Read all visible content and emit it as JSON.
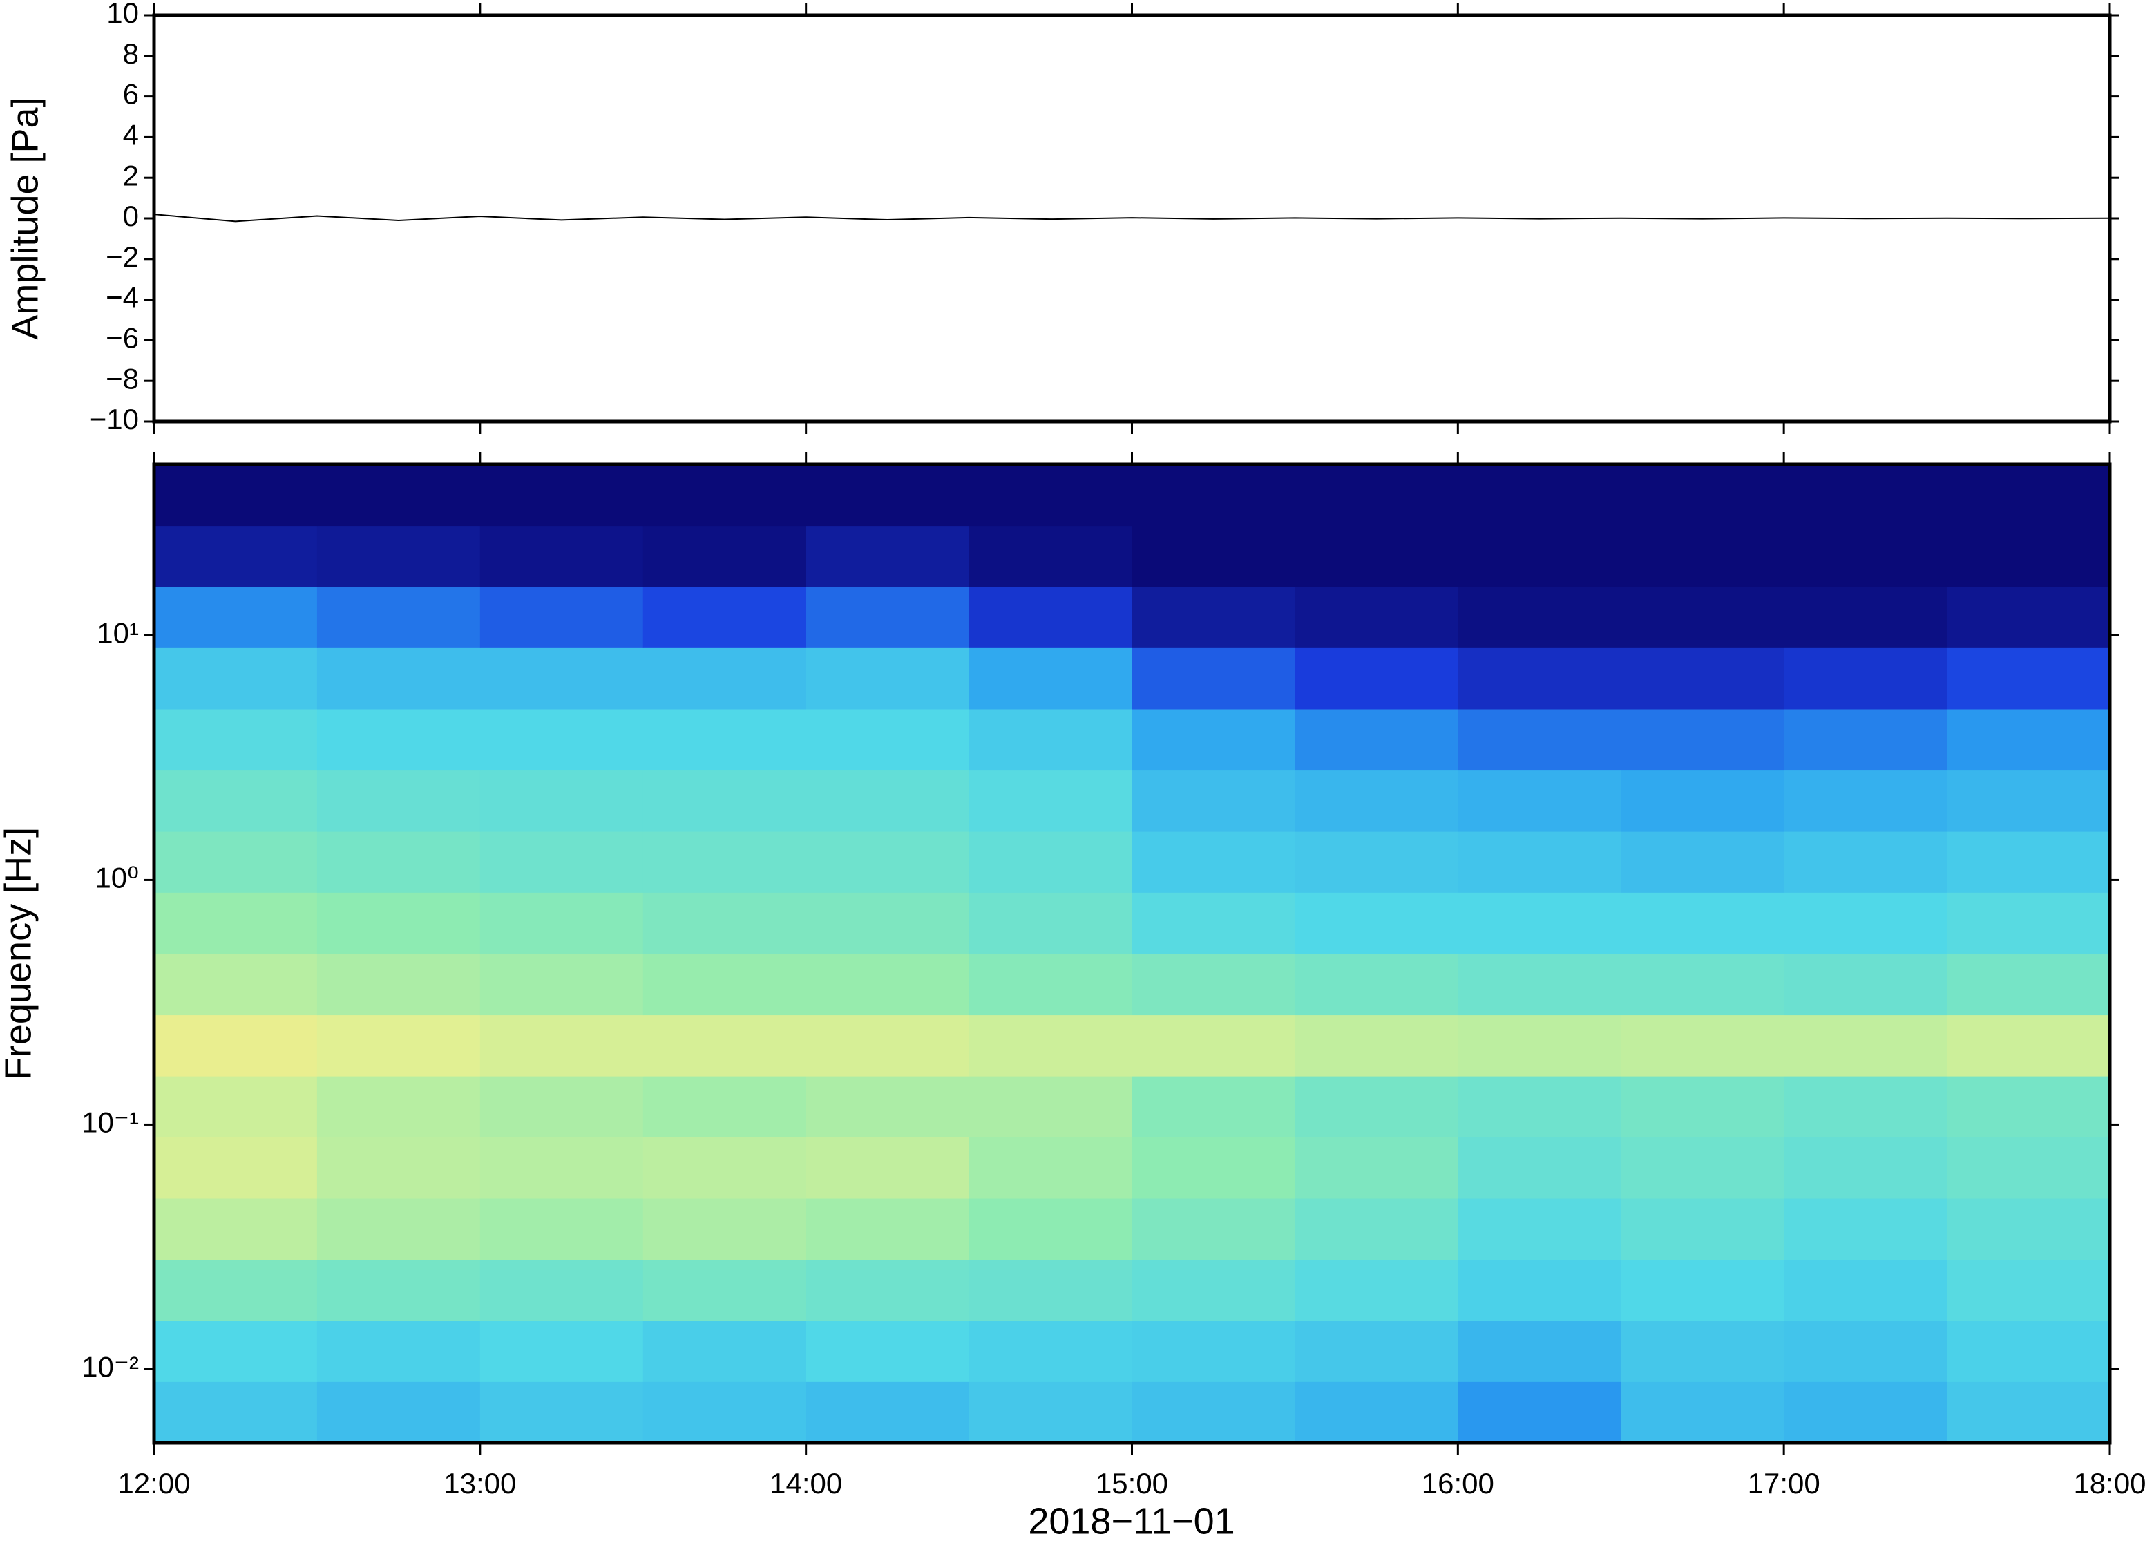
{
  "chart_data": [
    {
      "type": "line",
      "ylabel": "Amplitude [Pa]",
      "x": [
        12,
        12.25,
        12.5,
        12.75,
        13,
        13.25,
        13.5,
        13.75,
        14,
        14.25,
        14.5,
        14.75,
        15,
        15.25,
        15.5,
        15.75,
        16,
        16.25,
        16.5,
        16.75,
        17,
        17.25,
        17.5,
        17.75,
        18
      ],
      "values": [
        0.2,
        -0.15,
        0.12,
        -0.1,
        0.1,
        -0.08,
        0.06,
        -0.05,
        0.06,
        -0.07,
        0.04,
        -0.04,
        0.03,
        -0.03,
        0.02,
        -0.02,
        0.02,
        -0.02,
        0.01,
        -0.02,
        0.02,
        -0.01,
        0.01,
        -0.01,
        0.01
      ],
      "color": "#000000",
      "xlim": [
        12,
        18
      ],
      "xticks": [
        12,
        13,
        14,
        15,
        16,
        17,
        18
      ],
      "ylim": [
        -10,
        10
      ],
      "yticks": [
        {
          "value": -10,
          "label": "−10"
        },
        {
          "value": -8,
          "label": "−8"
        },
        {
          "value": -6,
          "label": "−6"
        },
        {
          "value": -4,
          "label": "−4"
        },
        {
          "value": -2,
          "label": "−2"
        },
        0,
        2,
        4,
        6,
        8,
        10
      ]
    },
    {
      "type": "heatmap",
      "ylabel": "Frequency [Hz]",
      "xlabel": "2018−11−01",
      "log_y": true,
      "xbins": [
        12,
        12.5,
        13,
        13.5,
        14,
        14.5,
        15,
        15.5,
        16,
        16.5,
        17,
        17.5,
        18
      ],
      "ybins": [
        0.005,
        0.0089,
        0.0158,
        0.0281,
        0.05,
        0.089,
        0.158,
        0.281,
        0.5,
        0.89,
        1.58,
        2.81,
        5,
        8.9,
        15.8,
        28.1,
        50
      ],
      "z": [
        [
          0.45,
          0.42,
          0.45,
          0.44,
          0.42,
          0.45,
          0.43,
          0.4,
          0.32,
          0.42,
          0.4,
          0.45
        ],
        [
          0.5,
          0.48,
          0.5,
          0.47,
          0.5,
          0.48,
          0.47,
          0.45,
          0.4,
          0.45,
          0.44,
          0.48
        ],
        [
          0.62,
          0.6,
          0.58,
          0.6,
          0.58,
          0.57,
          0.55,
          0.52,
          0.48,
          0.5,
          0.48,
          0.52
        ],
        [
          0.75,
          0.72,
          0.7,
          0.72,
          0.7,
          0.66,
          0.62,
          0.58,
          0.52,
          0.55,
          0.52,
          0.55
        ],
        [
          0.8,
          0.75,
          0.74,
          0.75,
          0.76,
          0.7,
          0.66,
          0.62,
          0.56,
          0.58,
          0.56,
          0.58
        ],
        [
          0.78,
          0.74,
          0.72,
          0.7,
          0.72,
          0.72,
          0.64,
          0.6,
          0.58,
          0.6,
          0.58,
          0.6
        ],
        [
          0.84,
          0.82,
          0.8,
          0.8,
          0.8,
          0.78,
          0.78,
          0.76,
          0.75,
          0.76,
          0.76,
          0.78
        ],
        [
          0.74,
          0.72,
          0.7,
          0.68,
          0.68,
          0.64,
          0.62,
          0.6,
          0.58,
          0.58,
          0.57,
          0.6
        ],
        [
          0.68,
          0.66,
          0.64,
          0.62,
          0.62,
          0.58,
          0.52,
          0.5,
          0.5,
          0.5,
          0.5,
          0.52
        ],
        [
          0.62,
          0.6,
          0.58,
          0.58,
          0.58,
          0.55,
          0.46,
          0.45,
          0.44,
          0.42,
          0.44,
          0.46
        ],
        [
          0.58,
          0.56,
          0.55,
          0.55,
          0.55,
          0.52,
          0.42,
          0.4,
          0.38,
          0.36,
          0.38,
          0.4
        ],
        [
          0.52,
          0.5,
          0.5,
          0.5,
          0.5,
          0.46,
          0.36,
          0.3,
          0.26,
          0.26,
          0.28,
          0.32
        ],
        [
          0.45,
          0.42,
          0.42,
          0.42,
          0.44,
          0.36,
          0.22,
          0.16,
          0.12,
          0.12,
          0.14,
          0.18
        ],
        [
          0.3,
          0.26,
          0.22,
          0.18,
          0.24,
          0.14,
          0.06,
          0.04,
          0.02,
          0.02,
          0.02,
          0.04
        ],
        [
          0.06,
          0.05,
          0.03,
          0.02,
          0.06,
          0.02,
          0,
          0,
          0,
          0,
          0,
          0
        ],
        [
          0,
          0,
          0,
          0,
          0,
          0,
          0,
          0,
          0,
          0,
          0,
          0
        ]
      ],
      "colormap": [
        "#0a0a78",
        "#1a3ee0",
        "#2aa0f0",
        "#50d8e8",
        "#90ecb0",
        "#e8f090",
        "#f8c880"
      ],
      "xlim": [
        12,
        18
      ],
      "xticks": [
        {
          "value": 12,
          "label": "12:00"
        },
        {
          "value": 13,
          "label": "13:00"
        },
        {
          "value": 14,
          "label": "14:00"
        },
        {
          "value": 15,
          "label": "15:00"
        },
        {
          "value": 16,
          "label": "16:00"
        },
        {
          "value": 17,
          "label": "17:00"
        },
        {
          "value": 18,
          "label": "18:00"
        }
      ],
      "ylim": [
        0.005,
        50
      ],
      "yticks": [
        {
          "value": 0.01,
          "label": "10⁻²"
        },
        {
          "value": 0.1,
          "label": "10⁻¹"
        },
        {
          "value": 1,
          "label": "10⁰"
        },
        {
          "value": 10,
          "label": "10¹"
        }
      ]
    }
  ]
}
